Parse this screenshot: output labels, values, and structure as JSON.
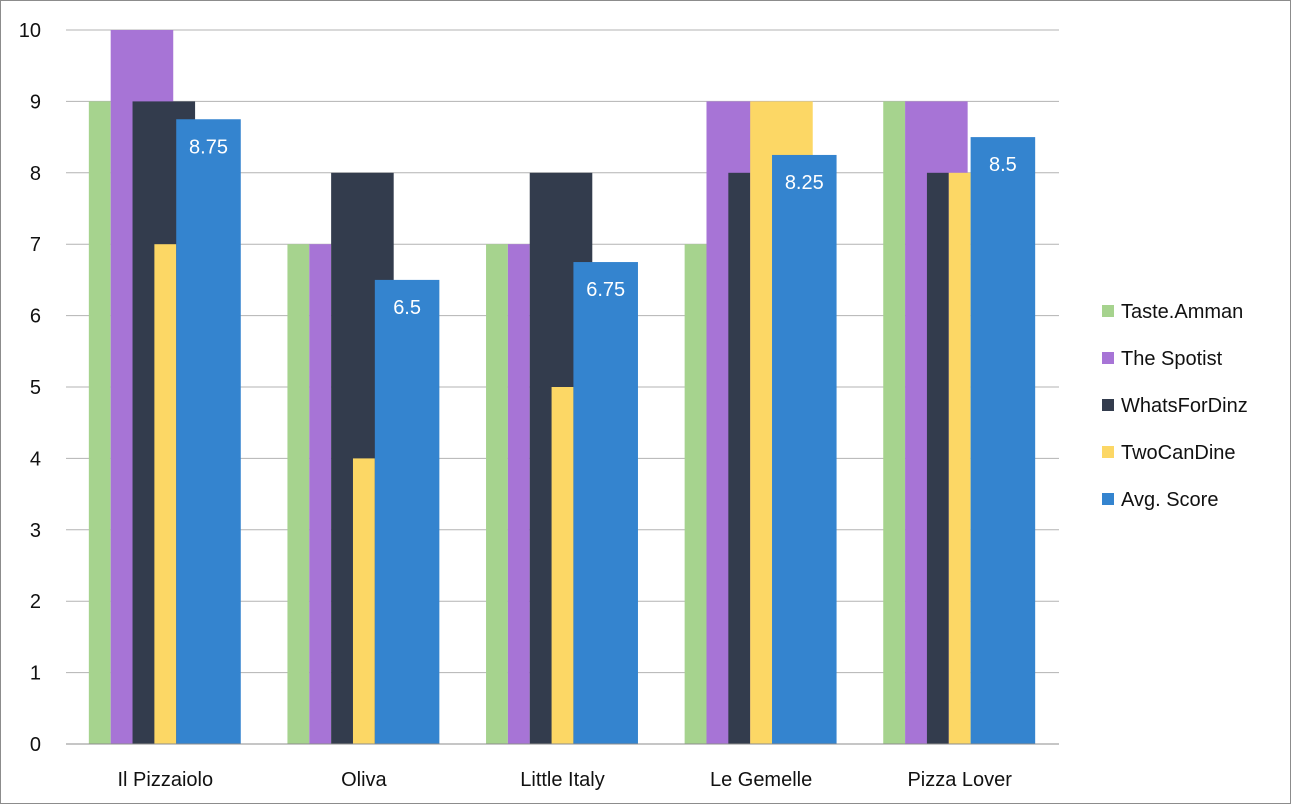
{
  "chart_data": {
    "type": "bar",
    "title": "",
    "xlabel": "",
    "ylabel": "",
    "ylim": [
      0,
      10
    ],
    "yticks": [
      0,
      1,
      2,
      3,
      4,
      5,
      6,
      7,
      8,
      9,
      10
    ],
    "grid": true,
    "legend_position": "right",
    "categories": [
      "Il Pizzaiolo",
      "Oliva",
      "Little Italy",
      "Le Gemelle",
      "Pizza Lover"
    ],
    "series": [
      {
        "name": "Taste.Amman",
        "color": "#a6d38e",
        "values": [
          9,
          7,
          7,
          7,
          9
        ]
      },
      {
        "name": "The Spotist",
        "color": "#a774d6",
        "values": [
          10,
          7,
          7,
          9,
          9
        ]
      },
      {
        "name": "WhatsForDinz",
        "color": "#333c4d",
        "values": [
          9,
          8,
          8,
          8,
          8
        ]
      },
      {
        "name": "TwoCanDine",
        "color": "#fcd765",
        "values": [
          7,
          4,
          5,
          9,
          8
        ]
      },
      {
        "name": "Avg. Score",
        "color": "#3484cf",
        "values": [
          8.75,
          6.5,
          6.75,
          8.25,
          8.5
        ],
        "data_labels": [
          "8.75",
          "6.5",
          "6.75",
          "8.25",
          "8.5"
        ]
      }
    ]
  }
}
